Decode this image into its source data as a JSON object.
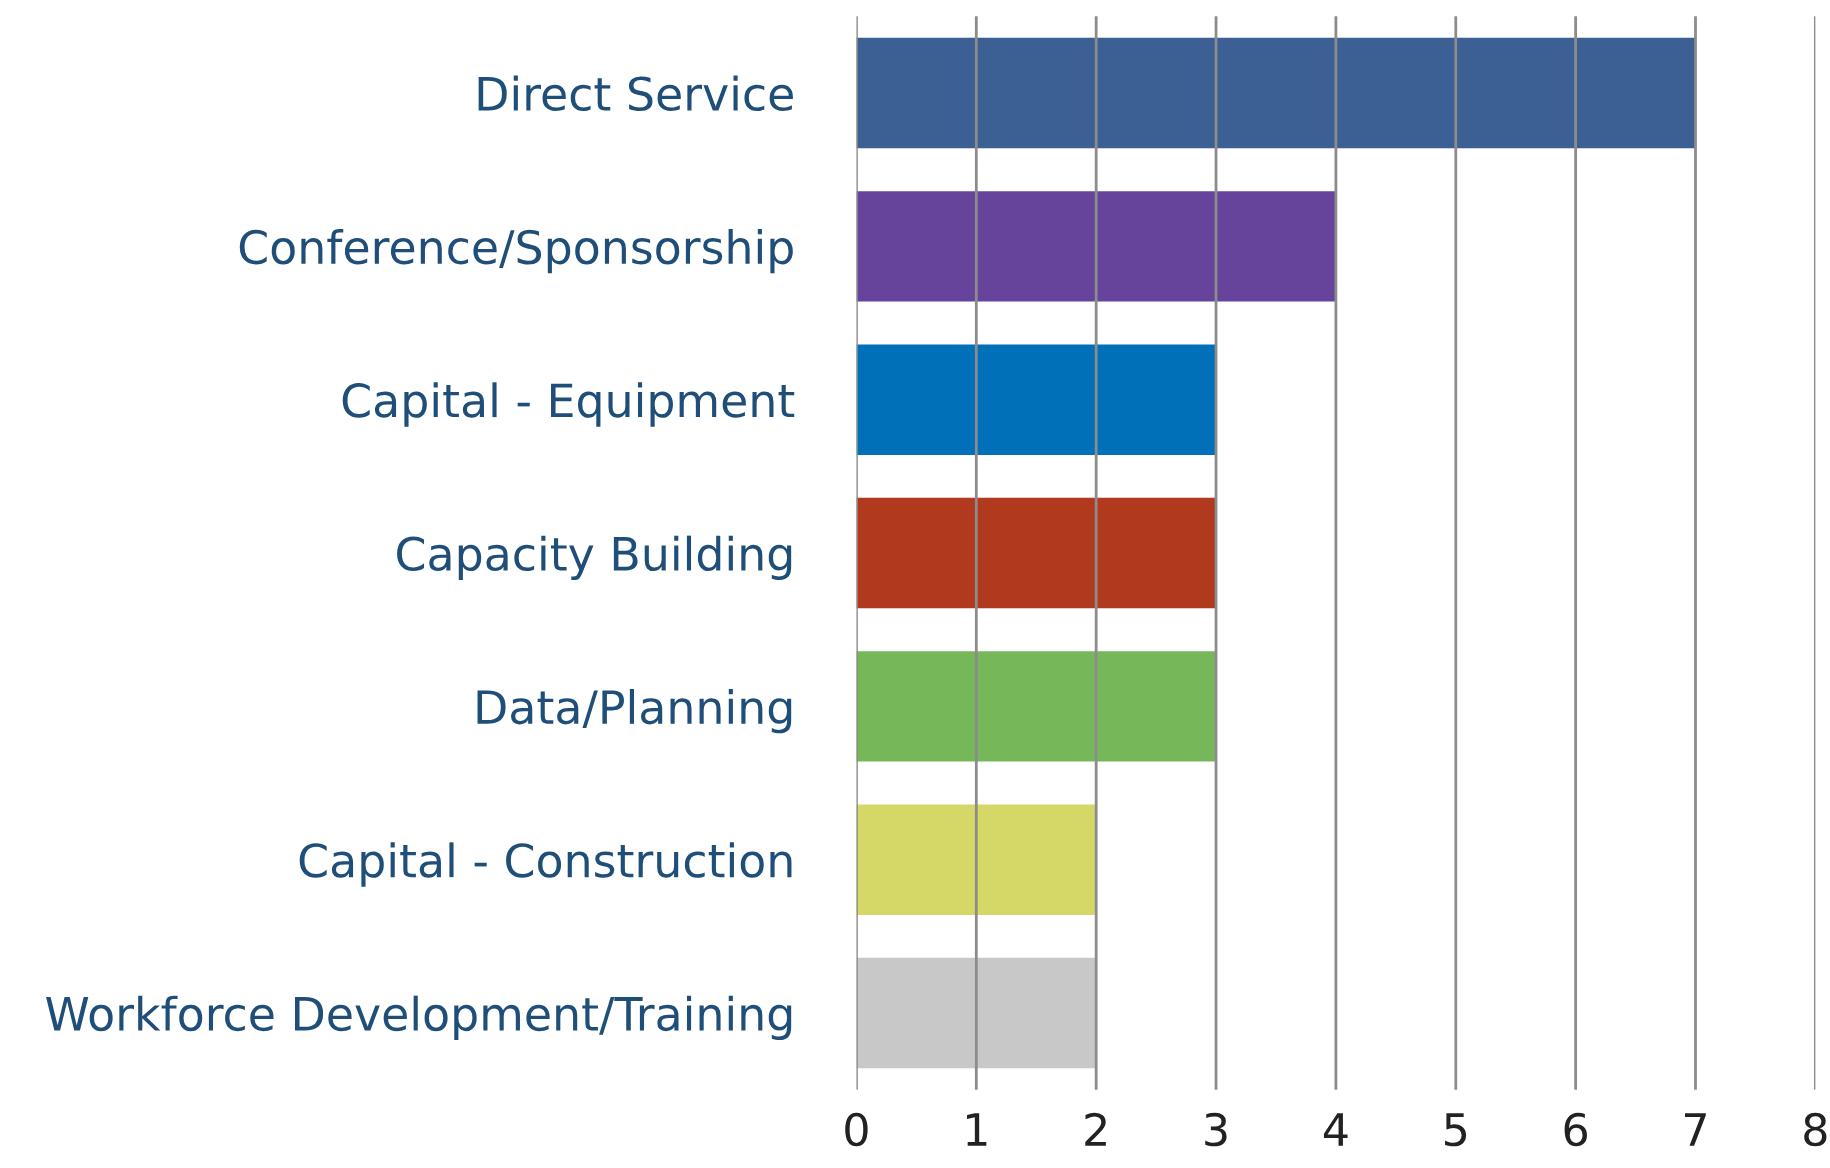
{
  "chart_data": {
    "type": "bar",
    "orientation": "horizontal",
    "categories": [
      "Direct Service",
      "Conference/Sponsorship",
      "Capital - Equipment",
      "Capacity Building",
      "Data/Planning",
      "Capital - Construction",
      "Workforce Development/Training"
    ],
    "values": [
      7,
      4,
      3,
      3,
      3,
      2,
      2
    ],
    "colors": [
      "#3c5f94",
      "#66449b",
      "#0070b8",
      "#b13a1e",
      "#76b75a",
      "#d5d866",
      "#c8c8c8"
    ],
    "xlim": [
      0,
      8
    ],
    "xticks": [
      0,
      1,
      2,
      3,
      4,
      5,
      6,
      7,
      8
    ],
    "grid": "x",
    "legend": false
  }
}
